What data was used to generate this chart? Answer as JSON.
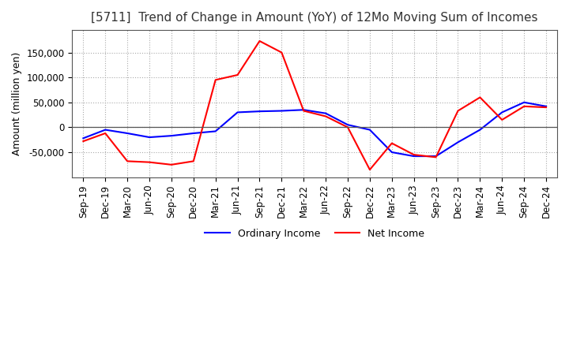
{
  "title": "[5711]  Trend of Change in Amount (YoY) of 12Mo Moving Sum of Incomes",
  "ylabel": "Amount (million yen)",
  "x_labels": [
    "Sep-19",
    "Dec-19",
    "Mar-20",
    "Jun-20",
    "Sep-20",
    "Dec-20",
    "Mar-21",
    "Jun-21",
    "Sep-21",
    "Dec-21",
    "Mar-22",
    "Jun-22",
    "Sep-22",
    "Dec-22",
    "Mar-23",
    "Jun-23",
    "Sep-23",
    "Dec-23",
    "Mar-24",
    "Jun-24",
    "Sep-24",
    "Dec-24"
  ],
  "ordinary_income": [
    -22000,
    -5000,
    -12000,
    -20000,
    -17000,
    -12000,
    -8000,
    30000,
    32000,
    33000,
    35000,
    28000,
    5000,
    -5000,
    -50000,
    -58000,
    -58000,
    -30000,
    -5000,
    30000,
    50000,
    42000
  ],
  "net_income": [
    -28000,
    -12000,
    -68000,
    -70000,
    -75000,
    -68000,
    95000,
    105000,
    173000,
    150000,
    33000,
    22000,
    0,
    -85000,
    -32000,
    -55000,
    -60000,
    33000,
    60000,
    15000,
    42000,
    40000
  ],
  "ordinary_color": "#0000ff",
  "net_color": "#ff0000",
  "ylim": [
    -100000,
    195000
  ],
  "yticks": [
    -50000,
    0,
    50000,
    100000,
    150000
  ],
  "background_color": "#ffffff",
  "grid_color": "#aaaaaa",
  "title_fontsize": 11,
  "axis_fontsize": 9,
  "tick_fontsize": 8.5
}
